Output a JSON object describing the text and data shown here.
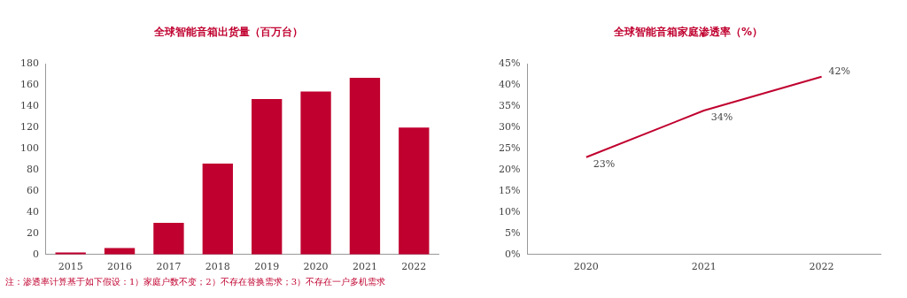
{
  "chart_data": [
    {
      "type": "bar",
      "title": "全球智能音箱出货量（百万台）",
      "categories": [
        "2015",
        "2016",
        "2017",
        "2018",
        "2019",
        "2020",
        "2021",
        "2022"
      ],
      "values": [
        2,
        6,
        30,
        86,
        147,
        154,
        167,
        120
      ],
      "color": "#c0002f",
      "ylim": [
        0,
        180
      ],
      "yticks": [
        0,
        20,
        40,
        60,
        80,
        100,
        120,
        140,
        160,
        180
      ],
      "grid": false,
      "legend": false
    },
    {
      "type": "line",
      "title": "全球智能音箱家庭渗透率（%）",
      "categories": [
        "2020",
        "2021",
        "2022"
      ],
      "values": [
        23,
        34,
        42
      ],
      "value_labels": [
        "23%",
        "34%",
        "42%"
      ],
      "color": "#c0002f",
      "ylim": [
        0,
        45
      ],
      "yticks": [
        {
          "value": 0,
          "label": "0%"
        },
        {
          "value": 5,
          "label": "5%"
        },
        {
          "value": 10,
          "label": "10%"
        },
        {
          "value": 15,
          "label": "15%"
        },
        {
          "value": 20,
          "label": "20%"
        },
        {
          "value": 25,
          "label": "25%"
        },
        {
          "value": 30,
          "label": "30%"
        },
        {
          "value": 35,
          "label": "35%"
        },
        {
          "value": 40,
          "label": "40%"
        },
        {
          "value": 45,
          "label": "45%"
        }
      ],
      "grid": false,
      "legend": false,
      "marker": "none"
    },
    {
      "type": "other",
      "annotations": [
        "注：渗透率计算基于如下假设：1）家庭户数不变；2）不存在替换需求；3）不存在一户多机需求"
      ]
    }
  ]
}
